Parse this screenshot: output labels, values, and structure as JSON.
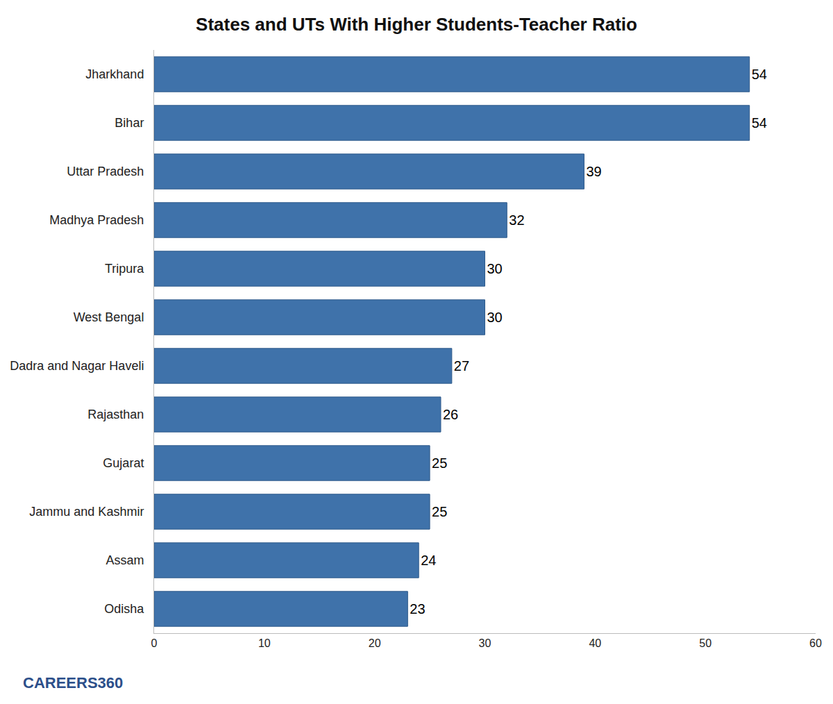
{
  "chart_data": {
    "type": "bar",
    "title": "States and UTs With Higher Students-Teacher Ratio",
    "orientation": "horizontal",
    "categories": [
      "Jharkhand",
      "Bihar",
      "Uttar Pradesh",
      "Madhya Pradesh",
      "Tripura",
      "West Bengal",
      "Dadra and Nagar Haveli",
      "Rajasthan",
      "Gujarat",
      "Jammu and Kashmir",
      "Assam",
      "Odisha"
    ],
    "values": [
      54,
      54,
      39,
      32,
      30,
      30,
      27,
      26,
      25,
      25,
      24,
      23
    ],
    "color": "#3f72aa",
    "xlim": [
      0,
      60
    ],
    "xticks": [
      0,
      10,
      20,
      30,
      40,
      50,
      60
    ],
    "grid": false,
    "data_labels": true,
    "annotations": [
      "CAREERS360"
    ]
  }
}
